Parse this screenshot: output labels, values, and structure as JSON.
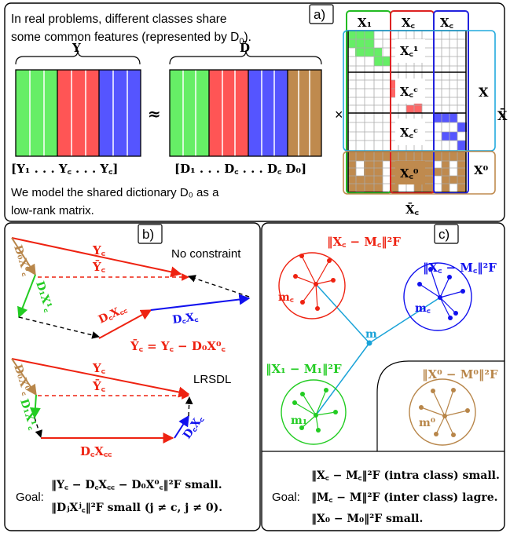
{
  "panel_a": {
    "tag": "a)",
    "intro_line1": "In real problems, different classes share",
    "intro_line2": "some common features (represented by D",
    "intro_line2_sub": "0",
    "intro_line2_end": ").",
    "label_Y": "Y",
    "label_Dbar": "D̄",
    "approx": "≈",
    "times": "×",
    "y_seq": "[Y₁ . . . Y꜀ . . . Y꜀]",
    "d_seq": "[D₁ . . . D꜀ . . . D꜀   D₀]",
    "shared_line1": "We model the shared dictionary D₀ as a",
    "shared_line2": "low-rank matrix.",
    "col_X1": "X₁",
    "col_Xc": "X꜀",
    "col_XC": "X꜀",
    "blk_Xc1": "X꜀¹",
    "blk_Xcc": "X꜀ᶜ",
    "blk_XcC": "X꜀ᶜ",
    "blk_Xc0": "X꜀⁰",
    "label_X": "X",
    "label_Xbar": "X̄",
    "label_X0": "X⁰",
    "label_Xbar_c": "X̄꜀",
    "colors": {
      "green": "#66ee66",
      "red": "#ff5555",
      "blue": "#5555ff",
      "brown": "#bf8a4e"
    }
  },
  "panel_b": {
    "tag": "b)",
    "no_constraint": "No constraint",
    "lrsdl": "LRSDL",
    "Yc": "Y꜀",
    "Ybar_c": "Ȳ꜀",
    "D0X0": "D₀X⁰꜀",
    "D1X1": "D₁X¹꜀",
    "DcXc": "D꜀X꜀꜀",
    "DCXC": "D꜀X꜀",
    "equation": "Ȳ꜀ = Y꜀ − D₀X⁰꜀",
    "goal_label": "Goal:",
    "goal1": "‖Y꜀ − D꜀X꜀꜀ − D₀X⁰꜀‖²F small.",
    "goal2": "‖DⱼXʲ꜀‖²F small (j ≠ c, j ≠ 0)."
  },
  "panel_c": {
    "tag": "c)",
    "norm_c": "‖X꜀ − M꜀‖²F",
    "norm_C": "‖X꜀ − M꜀‖²F",
    "norm_1": "‖X₁ − M₁‖²F",
    "norm_0": "‖X⁰ − M⁰‖²F",
    "m_c": "m꜀",
    "m_C": "m꜀",
    "m_1": "m₁",
    "m_0": "m⁰",
    "m": "m",
    "goal_label": "Goal:",
    "goal1": "‖X꜀ − M꜀‖²F (intra class) small.",
    "goal2": "‖M꜀ − M‖²F (inter class) lagre.",
    "goal3": "‖X₀ − M₀‖²F small."
  }
}
